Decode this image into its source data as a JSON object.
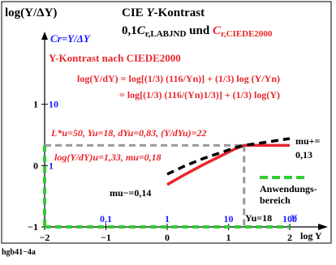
{
  "chart_data": {
    "type": "line",
    "title_line1_prefix": "CIE ",
    "title_line1_italic": "Y",
    "title_line1_suffix": "-Kontrast",
    "title_line2_prefix": "0,1",
    "title_line2_c": "C",
    "title_line2_sub1": "r,LABJND",
    "title_line2_mid": " und ",
    "title_line2_c2": "C",
    "title_line2_sub2": "r,CIEDE2000",
    "ylabel": "log(Y/ΔY)",
    "xlabel": "log Y",
    "cr_label": "Cr=Y/ΔY",
    "subtitle": "Y-Kontrast nach CIEDE2000",
    "formula1": "log(Y/dY) = log[(1/3) (116/Yn)] + (1/3) log (Y/Yn)",
    "formula2": "= log[(1/3) (116/(Yn)1/3)] + (1/3) log(Y)",
    "params1": "L*u=50, Yu=18, dYu=0,83, (Y/dYu)=22",
    "params2": "log(Y/dY)u=1,33, mu=0,18",
    "mu_plus": "mu+=",
    "mu_plus_val": "0,13",
    "mu_minus": "mu−=0,14",
    "legend_line1": "Anwendungs-",
    "legend_line2": "bereich",
    "yu_label": "Yu=18",
    "footer": "hgb41−4a",
    "xlim": [
      -2,
      2.3
    ],
    "ylim": [
      -1,
      2
    ],
    "x_ticks": [
      -2,
      -1,
      0,
      1,
      2
    ],
    "x_tick_labels": [
      "−2",
      "−1",
      "0",
      "1",
      "2"
    ],
    "y_ticks": [
      -1,
      0,
      1
    ],
    "y_tick_labels": [
      "−1",
      "0",
      "1"
    ],
    "y_blue_labels": [
      "1",
      "10"
    ],
    "x_blue_labels": [
      "0,1",
      "1",
      "10",
      "100"
    ],
    "x_blue_positions": [
      -1,
      0,
      1,
      2
    ],
    "y_unit_label": "Y",
    "series": [
      {
        "name": "Cr,CIEDE2000",
        "color": "#e8262b",
        "style": "solid",
        "x": [
          0.0,
          0.3,
          0.6,
          0.9,
          1.1,
          1.255,
          1.6,
          2.0
        ],
        "y": [
          -0.31,
          -0.14,
          0.02,
          0.17,
          0.27,
          0.33,
          0.33,
          0.33
        ]
      },
      {
        "name": "Cr,LABJND",
        "color": "#000000",
        "style": "dashed",
        "x": [
          0.0,
          0.3,
          0.6,
          0.9,
          1.1,
          1.255,
          1.6,
          2.0
        ],
        "y": [
          -0.14,
          0.0,
          0.12,
          0.22,
          0.29,
          0.33,
          0.38,
          0.44
        ]
      }
    ],
    "reference_lines": {
      "yu_log": 1.255,
      "y_u": 0.33,
      "color": "#999999"
    },
    "colors": {
      "red": "#e8262b",
      "blue": "#1a1aff",
      "green": "#33cc33",
      "gray": "#999999",
      "black": "#000000"
    }
  }
}
